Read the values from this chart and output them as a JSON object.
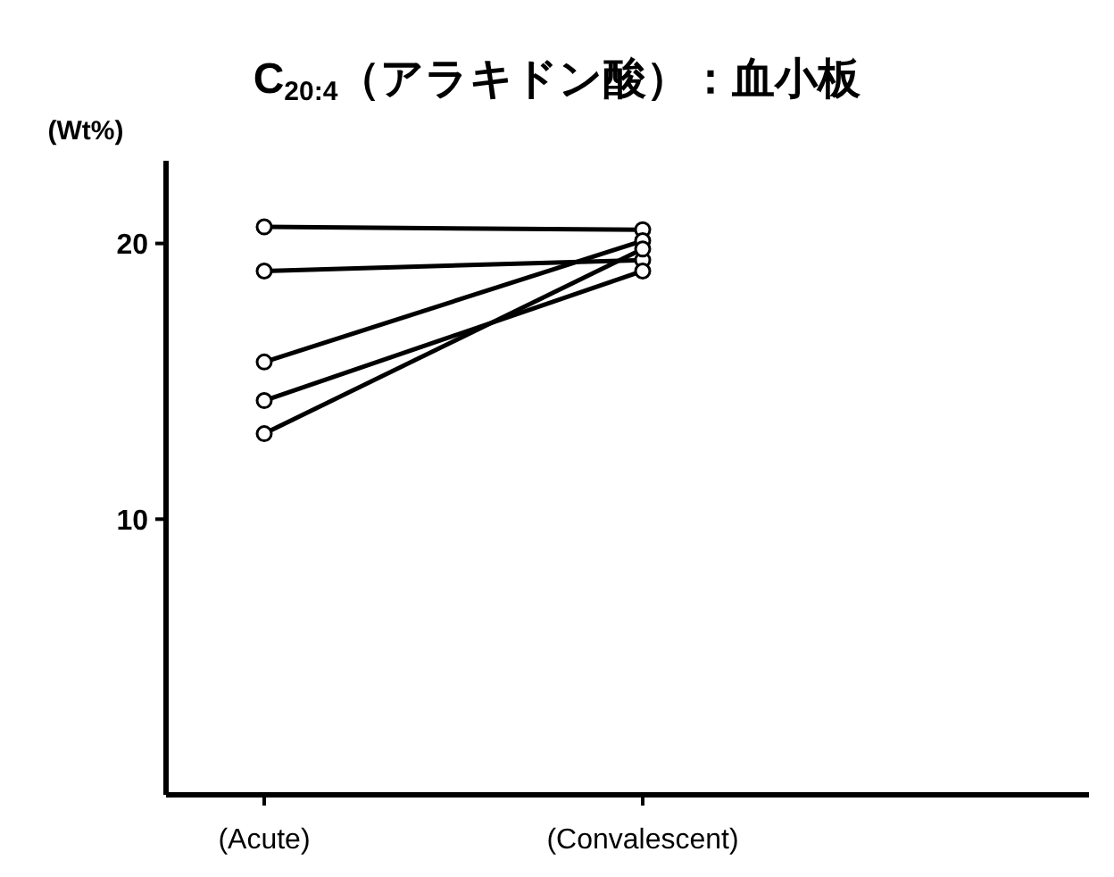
{
  "chart_data": {
    "type": "line",
    "title": "C$_{20:4}$（アラキドン酸）：血小板",
    "ylabel": "(Wt%)",
    "categories": [
      "(Acute)",
      "(Convalescent)"
    ],
    "ylim": [
      0,
      23
    ],
    "yticks": [
      10,
      20
    ],
    "grid": false,
    "marker": "circle",
    "line_style": "solid",
    "series": [
      {
        "color": "#000000",
        "values": [
          20.6,
          20.5
        ]
      },
      {
        "color": "#000000",
        "values": [
          19.0,
          19.4
        ]
      },
      {
        "color": "#000000",
        "values": [
          15.7,
          20.1
        ]
      },
      {
        "color": "#000000",
        "values": [
          14.3,
          19.0
        ]
      },
      {
        "color": "#000000",
        "values": [
          13.1,
          19.8
        ]
      }
    ]
  }
}
